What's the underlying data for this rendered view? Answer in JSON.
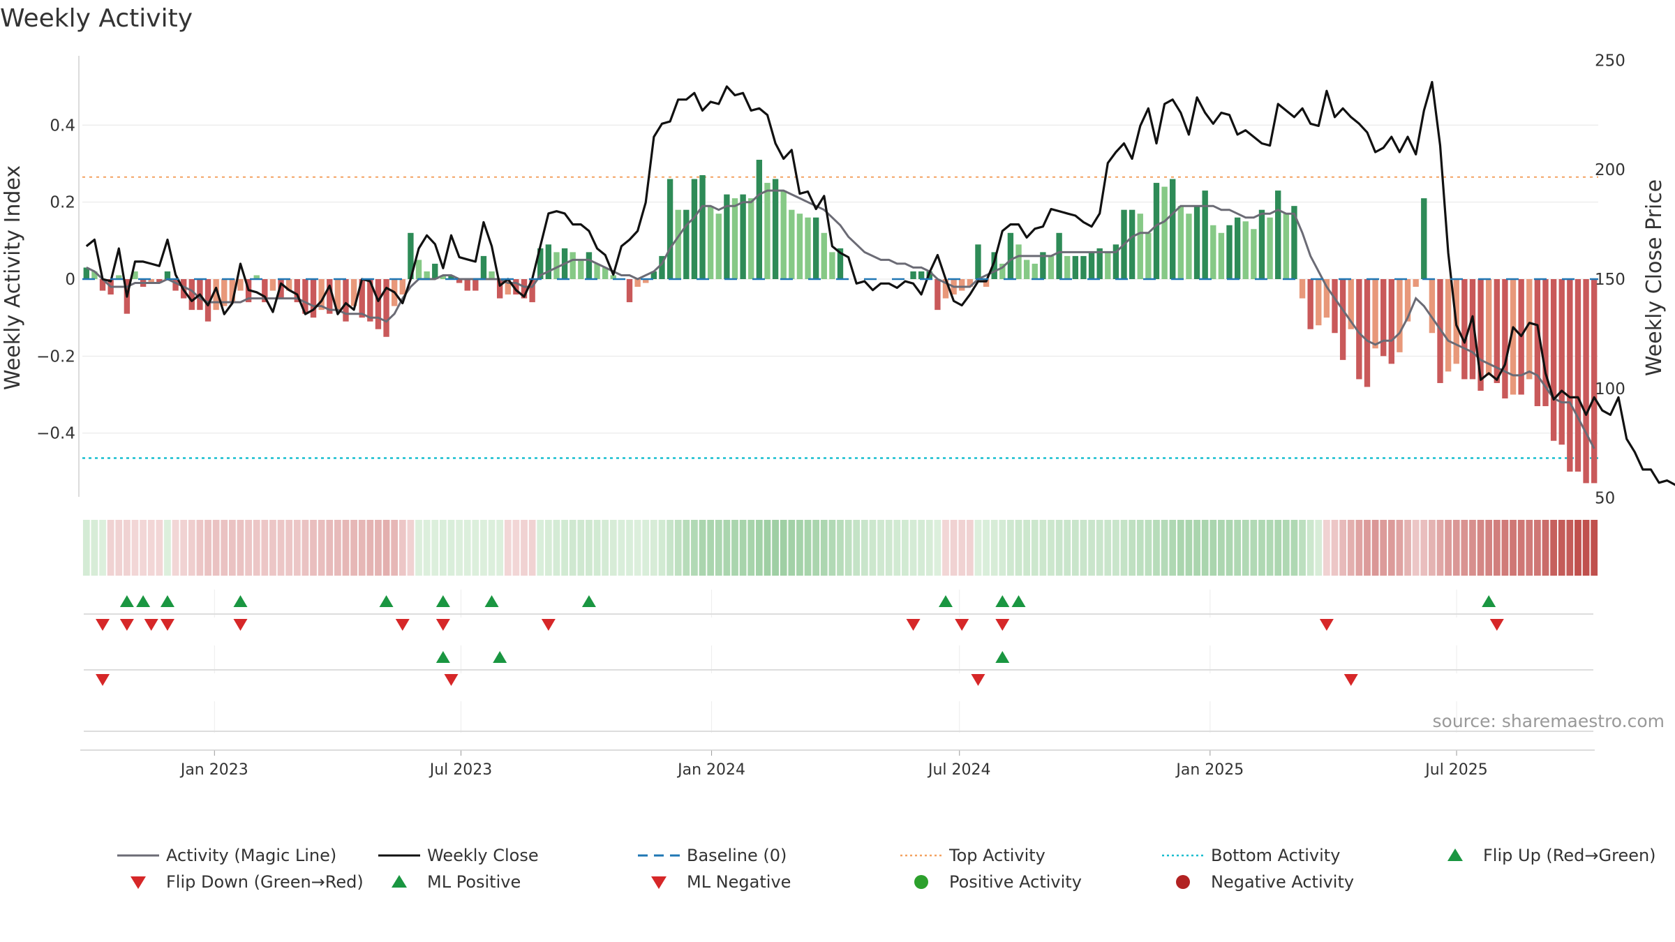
{
  "chart_data": {
    "type": "bar+line",
    "title": "Weekly Activity",
    "ylabel_left": "Weekly Activity Index",
    "ylabel_right": "Weekly Close Price",
    "source": "source: sharemaestro.com",
    "left_axis": {
      "range": [
        -0.58,
        0.58
      ],
      "ticks": [
        0.4,
        0.2,
        0,
        -0.2,
        -0.4
      ],
      "tick_labels": [
        "0.4",
        "0.2",
        "0",
        "−0.2",
        "−0.4"
      ]
    },
    "right_axis": {
      "range": [
        48,
        252
      ],
      "ticks": [
        250,
        200,
        150,
        100,
        50
      ],
      "tick_labels": [
        "250",
        "200",
        "150",
        "100",
        "50"
      ]
    },
    "x_axis": {
      "start": "2022-09-26",
      "end": "2025-10-13",
      "ticks": [
        {
          "label": "Jan 2023",
          "date": "2023-01-01"
        },
        {
          "label": "Jul 2023",
          "date": "2023-07-01"
        },
        {
          "label": "Jan 2024",
          "date": "2024-01-01"
        },
        {
          "label": "Jul 2024",
          "date": "2024-07-01"
        },
        {
          "label": "Jan 2025",
          "date": "2025-01-01"
        },
        {
          "label": "Jul 2025",
          "date": "2025-07-01"
        }
      ]
    },
    "reference_lines": {
      "baseline": 0,
      "top_activity": 0.265,
      "bottom_activity": -0.465
    },
    "weekly_activity": [
      0.03,
      0.02,
      -0.03,
      -0.04,
      0.01,
      -0.09,
      0.02,
      -0.02,
      -0.01,
      -0.01,
      0.02,
      -0.03,
      -0.05,
      -0.08,
      -0.08,
      -0.11,
      -0.08,
      -0.07,
      -0.06,
      -0.03,
      -0.06,
      0.01,
      -0.06,
      -0.03,
      -0.05,
      -0.03,
      -0.06,
      -0.09,
      -0.1,
      -0.08,
      -0.09,
      -0.08,
      -0.11,
      -0.07,
      -0.1,
      -0.11,
      -0.13,
      -0.15,
      -0.07,
      -0.04,
      0.12,
      0.05,
      0.02,
      0.04,
      0.01,
      0.01,
      -0.01,
      -0.03,
      -0.03,
      0.06,
      0.02,
      -0.05,
      -0.04,
      -0.04,
      -0.05,
      -0.06,
      0.08,
      0.09,
      0.07,
      0.08,
      0.07,
      0.05,
      0.07,
      0.04,
      0.03,
      0.01,
      0.0,
      -0.06,
      -0.02,
      -0.01,
      0.02,
      0.06,
      0.26,
      0.18,
      0.18,
      0.26,
      0.27,
      0.19,
      0.17,
      0.22,
      0.21,
      0.22,
      0.21,
      0.31,
      0.25,
      0.26,
      0.23,
      0.18,
      0.17,
      0.16,
      0.16,
      0.12,
      0.07,
      0.08,
      0.0,
      0.0,
      0.0,
      0.0,
      0.0,
      0.0,
      0.0,
      0.0,
      0.02,
      0.02,
      0.02,
      -0.08,
      -0.05,
      -0.04,
      -0.03,
      -0.02,
      0.09,
      -0.02,
      0.07,
      0.04,
      0.12,
      0.09,
      0.05,
      0.04,
      0.07,
      0.06,
      0.12,
      0.06,
      0.06,
      0.06,
      0.07,
      0.08,
      0.07,
      0.09,
      0.18,
      0.18,
      0.17,
      0.12,
      0.25,
      0.24,
      0.26,
      0.19,
      0.17,
      0.19,
      0.23,
      0.14,
      0.12,
      0.14,
      0.16,
      0.15,
      0.13,
      0.18,
      0.16,
      0.23,
      0.17,
      0.19,
      -0.05,
      -0.13,
      -0.12,
      -0.1,
      -0.14,
      -0.21,
      -0.13,
      -0.26,
      -0.28,
      -0.18,
      -0.2,
      -0.22,
      -0.19,
      -0.11,
      -0.02,
      0.21,
      -0.14,
      -0.27,
      -0.24,
      -0.22,
      -0.26,
      -0.26,
      -0.29,
      -0.25,
      -0.27,
      -0.31,
      -0.3,
      -0.3,
      -0.26,
      -0.33,
      -0.33,
      -0.42,
      -0.43,
      -0.5,
      -0.5,
      -0.53,
      -0.53
    ],
    "magic_line": [
      0.03,
      0.02,
      0.0,
      -0.02,
      -0.02,
      -0.02,
      -0.01,
      -0.01,
      -0.01,
      -0.01,
      0.0,
      -0.01,
      -0.02,
      -0.03,
      -0.05,
      -0.06,
      -0.06,
      -0.06,
      -0.06,
      -0.06,
      -0.05,
      -0.05,
      -0.05,
      -0.05,
      -0.05,
      -0.05,
      -0.05,
      -0.06,
      -0.07,
      -0.07,
      -0.08,
      -0.08,
      -0.09,
      -0.09,
      -0.09,
      -0.1,
      -0.1,
      -0.11,
      -0.09,
      -0.05,
      -0.02,
      0.0,
      0.0,
      0.0,
      0.01,
      0.01,
      0.0,
      0.0,
      0.0,
      0.0,
      0.0,
      0.0,
      -0.01,
      -0.01,
      -0.02,
      -0.02,
      0.01,
      0.02,
      0.03,
      0.04,
      0.05,
      0.05,
      0.05,
      0.04,
      0.03,
      0.02,
      0.01,
      0.01,
      0.0,
      0.01,
      0.02,
      0.04,
      0.08,
      0.11,
      0.14,
      0.16,
      0.19,
      0.19,
      0.18,
      0.19,
      0.19,
      0.2,
      0.2,
      0.22,
      0.23,
      0.23,
      0.23,
      0.22,
      0.21,
      0.2,
      0.19,
      0.18,
      0.16,
      0.14,
      0.11,
      0.09,
      0.07,
      0.06,
      0.05,
      0.05,
      0.04,
      0.04,
      0.03,
      0.03,
      0.02,
      0.0,
      -0.01,
      -0.02,
      -0.02,
      -0.02,
      0.0,
      0.01,
      0.02,
      0.03,
      0.05,
      0.06,
      0.06,
      0.06,
      0.06,
      0.06,
      0.07,
      0.07,
      0.07,
      0.07,
      0.07,
      0.07,
      0.07,
      0.07,
      0.09,
      0.11,
      0.12,
      0.12,
      0.14,
      0.15,
      0.17,
      0.19,
      0.19,
      0.19,
      0.19,
      0.19,
      0.18,
      0.18,
      0.17,
      0.16,
      0.16,
      0.17,
      0.17,
      0.18,
      0.17,
      0.17,
      0.12,
      0.06,
      0.02,
      -0.02,
      -0.05,
      -0.08,
      -0.11,
      -0.14,
      -0.16,
      -0.17,
      -0.16,
      -0.16,
      -0.14,
      -0.1,
      -0.05,
      -0.07,
      -0.1,
      -0.13,
      -0.16,
      -0.17,
      -0.18,
      -0.19,
      -0.21,
      -0.22,
      -0.23,
      -0.24,
      -0.25,
      -0.25,
      -0.24,
      -0.25,
      -0.28,
      -0.31,
      -0.32,
      -0.32,
      -0.36,
      -0.4,
      -0.44
    ],
    "weekly_close": [
      165,
      168,
      150,
      149,
      164,
      142,
      158,
      158,
      157,
      156,
      168,
      152,
      145,
      140,
      143,
      138,
      146,
      134,
      139,
      157,
      145,
      144,
      142,
      135,
      148,
      145,
      143,
      134,
      136,
      140,
      147,
      134,
      139,
      136,
      150,
      149,
      140,
      146,
      144,
      139,
      150,
      164,
      170,
      166,
      155,
      170,
      160,
      159,
      158,
      176,
      165,
      147,
      150,
      145,
      142,
      150,
      165,
      180,
      181,
      180,
      175,
      175,
      172,
      164,
      161,
      152,
      165,
      168,
      172,
      185,
      215,
      221,
      222,
      232,
      232,
      235,
      227,
      231,
      230,
      238,
      234,
      235,
      227,
      228,
      225,
      212,
      205,
      209,
      189,
      190,
      182,
      188,
      165,
      162,
      160,
      148,
      149,
      145,
      148,
      148,
      146,
      149,
      148,
      143,
      153,
      161,
      150,
      140,
      138,
      143,
      149,
      149,
      158,
      172,
      175,
      175,
      169,
      173,
      174,
      182,
      181,
      180,
      179,
      176,
      174,
      180,
      203,
      208,
      212,
      205,
      220,
      228,
      212,
      230,
      232,
      226,
      216,
      233,
      226,
      221,
      226,
      225,
      216,
      218,
      215,
      212,
      211,
      230,
      227,
      224,
      228,
      221,
      220,
      236,
      224,
      228,
      224,
      221,
      217,
      208,
      210,
      215,
      208,
      215,
      207,
      227,
      240,
      211,
      162,
      129,
      121,
      133,
      104,
      107,
      104,
      111,
      128,
      124,
      130,
      129,
      107,
      95,
      99,
      96,
      96,
      88,
      96,
      90,
      88,
      96,
      77,
      71,
      63,
      63,
      57,
      58,
      56,
      59,
      51
    ],
    "flip_up_weeks": [
      5,
      7,
      10,
      19,
      37,
      44,
      50,
      62,
      106,
      113,
      115,
      173
    ],
    "flip_down_weeks": [
      2,
      5,
      8,
      10,
      19,
      39,
      44,
      57,
      102,
      108,
      113,
      153,
      174
    ],
    "ml_positive_weeks": [
      44,
      51,
      113
    ],
    "ml_negative_weeks": [
      2,
      45,
      110,
      156
    ]
  },
  "legend": [
    {
      "label": "Activity (Magic Line)",
      "kind": "line",
      "color": "#6b6b75"
    },
    {
      "label": "Weekly Close",
      "kind": "line",
      "color": "#111111"
    },
    {
      "label": "Baseline (0)",
      "kind": "dash",
      "color": "#1f77b4"
    },
    {
      "label": "Top Activity",
      "kind": "dot",
      "color": "#f4a261"
    },
    {
      "label": "Bottom Activity",
      "kind": "dot",
      "color": "#17becf"
    },
    {
      "label": "Flip Up (Red→Green)",
      "kind": "tri-up",
      "color": "#1a9641"
    },
    {
      "label": "Flip Down (Green→Red)",
      "kind": "tri-down",
      "color": "#d62728"
    },
    {
      "label": "ML Positive",
      "kind": "tri-up",
      "color": "#1a9641"
    },
    {
      "label": "ML Negative",
      "kind": "tri-down",
      "color": "#d62728"
    },
    {
      "label": "Positive Activity",
      "kind": "circle",
      "color": "#2ca02c"
    },
    {
      "label": "Negative Activity",
      "kind": "circle",
      "color": "#b22222"
    }
  ],
  "colors": {
    "pos_strong": "#2e8b57",
    "pos_light": "#86c986",
    "neg_strong": "#c9595a",
    "neg_light": "#e8987a",
    "magic_line": "#6b6b75",
    "close": "#111111",
    "baseline": "#1f77b4",
    "top": "#f4a261",
    "bottom": "#17becf",
    "flip_up": "#1a9641",
    "flip_down": "#d62728"
  }
}
